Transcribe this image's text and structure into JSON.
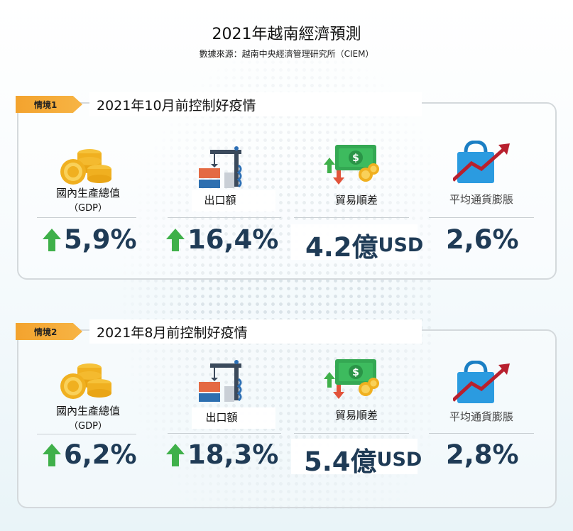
{
  "title": "2021年越南經濟預測",
  "source": "數據來源：越南中央經濟管理研究所（CIEM）",
  "colors": {
    "tag": "#f3a32e",
    "value": "#1f3b56",
    "arrow_up": "#3fb04a",
    "arrow_down": "#e2533a"
  },
  "labels": {
    "gdp": "國內生產總值",
    "gdp_sub": "（GDP）",
    "export": "出口額",
    "trade": "貿易順差",
    "inflation": "平均通貨膨脹"
  },
  "scenarios": [
    {
      "tag": "情境1",
      "heading": "2021年10月前控制好疫情",
      "gdp": "5,9%",
      "export": "16,4%",
      "trade": "4.2億",
      "trade_unit": "USD",
      "inflation": "2,6%"
    },
    {
      "tag": "情境2",
      "heading": "2021年8月前控制好疫情",
      "gdp": "6,2%",
      "export": "18,3%",
      "trade": "5.4億",
      "trade_unit": "USD",
      "inflation": "2,8%"
    }
  ],
  "icons": [
    "coins-icon",
    "cargo-crane-icon",
    "money-trade-icon",
    "shopping-bag-chart-icon",
    "arrow-up-icon"
  ]
}
